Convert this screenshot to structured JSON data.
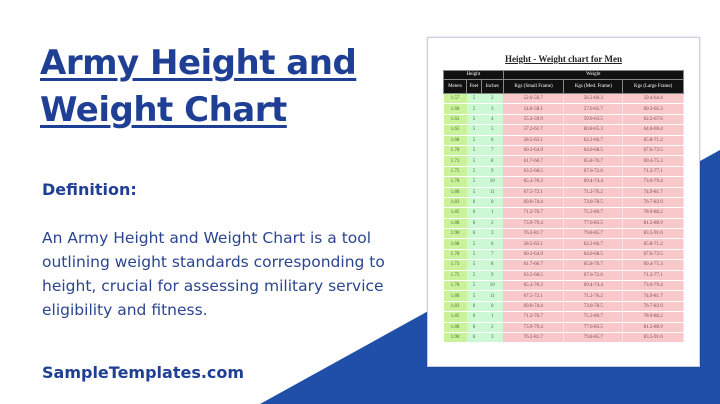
{
  "title": "Army Height and Weight Chart",
  "definition_label": "Definition:",
  "definition_text": "An Army Height and Weight Chart is a tool outlining weight standards corresponding to height, crucial for assessing military service eligibility and fitness.",
  "brand": "SampleTemplates.com",
  "colors": {
    "primary": "#1f3f95",
    "accent_shape": "#1f4fa8"
  },
  "chart": {
    "title": "Height - Weight chart for Men",
    "group_headers": [
      "Height",
      "Weight"
    ],
    "columns": [
      "Meters",
      "Feet",
      "Inches",
      "Kgs (Small Frame)",
      "Kgs (Med. Frame)",
      "Kgs (Large Frame)"
    ],
    "rows": [
      [
        "1.57",
        "5",
        "2",
        "52.6-56.7",
        "56.2-60.3",
        "59.4-64.4"
      ],
      [
        "1.60",
        "5",
        "3",
        "54.0-58.1",
        "57.6-61.7",
        "60.3-65.3"
      ],
      [
        "1.63",
        "5",
        "4",
        "55.3-59.9",
        "59.0-63.5",
        "62.2-67.6"
      ],
      [
        "1.65",
        "5",
        "5",
        "57.2-61.7",
        "60.8-65.3",
        "64.0-69.4"
      ],
      [
        "1.68",
        "5",
        "6",
        "58.5-63.1",
        "62.2-66.7",
        "65.8-71.2"
      ],
      [
        "1.70",
        "5",
        "7",
        "60.3-64.9",
        "64.0-68.5",
        "67.6-73.5"
      ],
      [
        "1.73",
        "5",
        "8",
        "61.7-66.7",
        "65.8-70.7",
        "69.4-75.3"
      ],
      [
        "1.75",
        "5",
        "9",
        "63.5-68.5",
        "67.6-72.6",
        "71.2-77.1"
      ],
      [
        "1.78",
        "5",
        "10",
        "65.3-70.3",
        "69.4-74.4",
        "73.0-79.4"
      ],
      [
        "1.80",
        "5",
        "11",
        "67.5-72.1",
        "71.2-76.2",
        "74.9-81.7"
      ],
      [
        "1.83",
        "6",
        "0",
        "69.0-74.4",
        "73.0-78.5",
        "76.7-83.9"
      ],
      [
        "1.85",
        "6",
        "1",
        "71.2-76.7",
        "75.3-80.7",
        "78.9-86.2"
      ],
      [
        "1.88",
        "6",
        "2",
        "73.9-79.4",
        "77.6-83.5",
        "81.2-88.9"
      ],
      [
        "1.90",
        "6",
        "3",
        "76.2-81.7",
        "79.8-85.7",
        "83.5-91.6"
      ],
      [
        "1.68",
        "5",
        "6",
        "58.5-63.1",
        "62.2-66.7",
        "65.8-71.2"
      ],
      [
        "1.70",
        "5",
        "7",
        "60.3-64.9",
        "64.0-68.5",
        "67.6-73.5"
      ],
      [
        "1.73",
        "5",
        "8",
        "61.7-66.7",
        "65.8-70.7",
        "69.4-75.3"
      ],
      [
        "1.75",
        "5",
        "9",
        "63.5-68.5",
        "67.6-72.6",
        "71.2-77.1"
      ],
      [
        "1.78",
        "5",
        "10",
        "65.3-70.3",
        "69.4-74.4",
        "73.0-79.4"
      ],
      [
        "1.80",
        "5",
        "11",
        "67.5-72.1",
        "71.2-76.2",
        "74.9-81.7"
      ],
      [
        "1.83",
        "6",
        "0",
        "69.0-74.4",
        "73.0-78.5",
        "76.7-83.9"
      ],
      [
        "1.85",
        "6",
        "1",
        "71.2-76.7",
        "75.3-80.7",
        "78.9-86.2"
      ],
      [
        "1.88",
        "6",
        "2",
        "73.9-79.4",
        "77.6-83.5",
        "81.2-88.9"
      ],
      [
        "1.90",
        "6",
        "3",
        "76.2-81.7",
        "79.8-85.7",
        "83.5-91.6"
      ]
    ]
  }
}
